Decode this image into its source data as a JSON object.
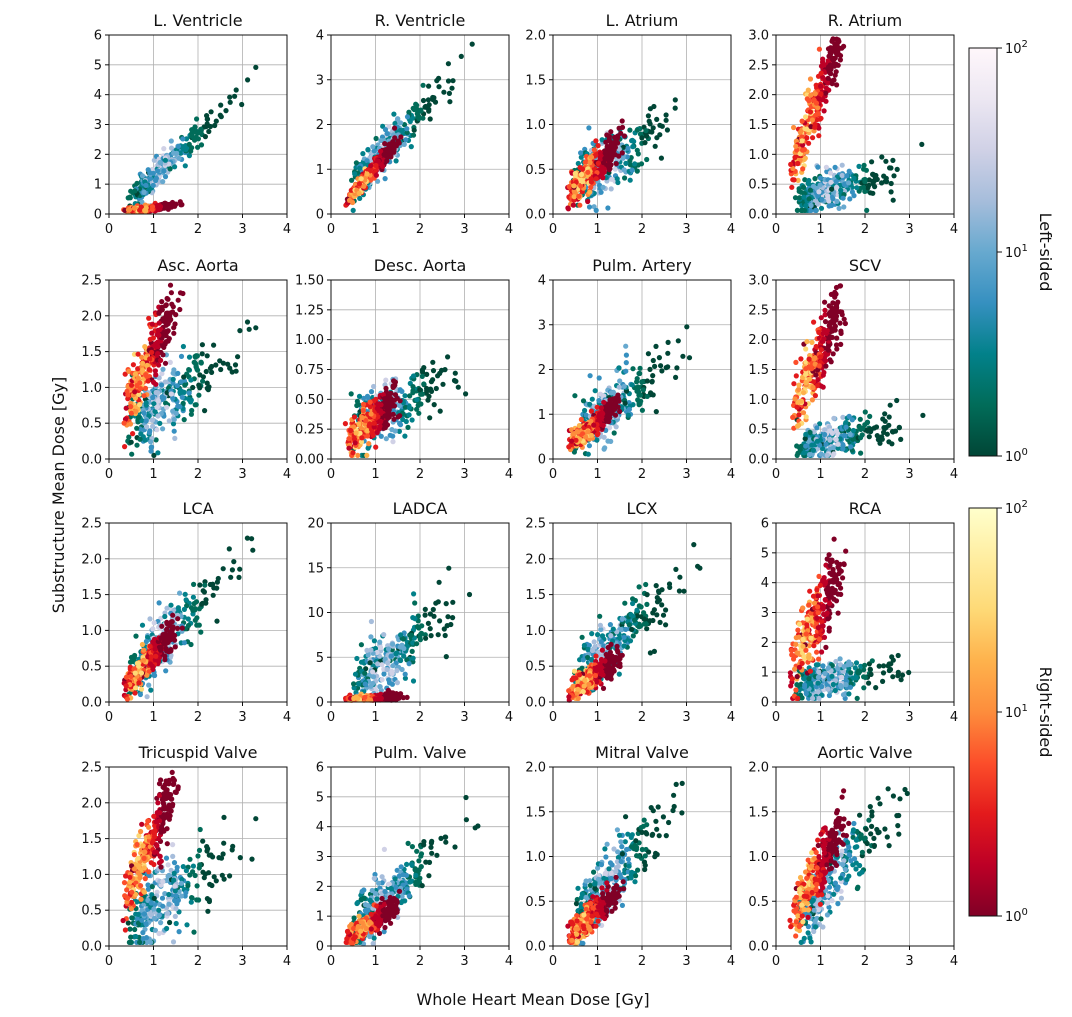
{
  "figure": {
    "xlabel": "Whole Heart Mean Dose [Gy]",
    "ylabel": "Substructure Mean Dose [Gy]"
  },
  "colorbars": [
    {
      "label": "Left-sided",
      "colormap": "PuBuGn_r",
      "scale": "log",
      "range": [
        1,
        100
      ],
      "ticks": [
        {
          "base": "10",
          "exp": "2"
        },
        {
          "base": "10",
          "exp": "1"
        },
        {
          "base": "10",
          "exp": "0"
        }
      ],
      "colors": [
        "#014636",
        "#016c59",
        "#02818a",
        "#3690c0",
        "#67a9cf",
        "#a6bddb",
        "#d0d1e6",
        "#ece7f2",
        "#fff7fb"
      ]
    },
    {
      "label": "Right-sided",
      "colormap": "YlOrRd_r",
      "scale": "log",
      "range": [
        1,
        100
      ],
      "ticks": [
        {
          "base": "10",
          "exp": "2"
        },
        {
          "base": "10",
          "exp": "1"
        },
        {
          "base": "10",
          "exp": "0"
        }
      ],
      "colors": [
        "#800026",
        "#bd0026",
        "#e31a1c",
        "#fc4e2a",
        "#fd8d3c",
        "#feb24c",
        "#fed976",
        "#ffeda0",
        "#ffffcc"
      ]
    }
  ],
  "chart_data": [
    {
      "type": "heatmap",
      "title": "L. Ventricle",
      "xlim": [
        0,
        4
      ],
      "ylim": [
        0,
        6
      ],
      "xticks": [
        "0",
        "1",
        "2",
        "3",
        "4"
      ],
      "yticks": [
        "0",
        "1",
        "2",
        "3",
        "4",
        "5",
        "6"
      ],
      "grid": true,
      "series": [
        {
          "name": "Left-sided",
          "slope": 1.45,
          "intercept": -0.2,
          "spread": 0.22
        },
        {
          "name": "Right-sided",
          "slope": 0.18,
          "intercept": 0.03,
          "spread": 0.05
        }
      ]
    },
    {
      "type": "heatmap",
      "title": "R. Ventricle",
      "xlim": [
        0,
        4
      ],
      "ylim": [
        0,
        4
      ],
      "xticks": [
        "0",
        "1",
        "2",
        "3",
        "4"
      ],
      "yticks": [
        "0",
        "1",
        "2",
        "3",
        "4"
      ],
      "grid": true,
      "series": [
        {
          "name": "Left-sided",
          "slope": 1.1,
          "intercept": 0.1,
          "spread": 0.25
        },
        {
          "name": "Right-sided",
          "slope": 1.15,
          "intercept": -0.1,
          "spread": 0.1
        }
      ]
    },
    {
      "type": "heatmap",
      "title": "L. Atrium",
      "xlim": [
        0,
        4
      ],
      "ylim": [
        0,
        2
      ],
      "xticks": [
        "0",
        "1",
        "2",
        "3",
        "4"
      ],
      "yticks": [
        "0.0",
        "0.5",
        "1.0",
        "1.5",
        "2.0"
      ],
      "grid": true,
      "series": [
        {
          "name": "Left-sided",
          "slope": 0.3,
          "intercept": 0.2,
          "spread": 0.16
        },
        {
          "name": "Right-sided",
          "slope": 0.5,
          "intercept": 0.05,
          "spread": 0.1
        }
      ]
    },
    {
      "type": "heatmap",
      "title": "R. Atrium",
      "xlim": [
        0,
        4
      ],
      "ylim": [
        0,
        3
      ],
      "xticks": [
        "0",
        "1",
        "2",
        "3",
        "4"
      ],
      "yticks": [
        "0.0",
        "0.5",
        "1.0",
        "1.5",
        "2.0",
        "2.5",
        "3.0"
      ],
      "grid": true,
      "series": [
        {
          "name": "Left-sided",
          "slope": 0.2,
          "intercept": 0.15,
          "spread": 0.16
        },
        {
          "name": "Right-sided",
          "slope": 2.0,
          "intercept": 0.05,
          "spread": 0.25
        }
      ]
    },
    {
      "type": "heatmap",
      "title": "Asc. Aorta",
      "xlim": [
        0,
        4
      ],
      "ylim": [
        0,
        2.5
      ],
      "xticks": [
        "0",
        "1",
        "2",
        "3",
        "4"
      ],
      "yticks": [
        "0.0",
        "0.5",
        "1.0",
        "1.5",
        "2.0",
        "2.5"
      ],
      "grid": true,
      "series": [
        {
          "name": "Left-sided",
          "slope": 0.4,
          "intercept": 0.3,
          "spread": 0.25
        },
        {
          "name": "Right-sided",
          "slope": 1.3,
          "intercept": 0.2,
          "spread": 0.22
        }
      ]
    },
    {
      "type": "heatmap",
      "title": "Desc. Aorta",
      "xlim": [
        0,
        4
      ],
      "ylim": [
        0,
        1.5
      ],
      "xticks": [
        "0",
        "1",
        "2",
        "3",
        "4"
      ],
      "yticks": [
        "0.00",
        "0.25",
        "0.50",
        "0.75",
        "1.00",
        "1.25",
        "1.50"
      ],
      "grid": true,
      "series": [
        {
          "name": "Left-sided",
          "slope": 0.2,
          "intercept": 0.15,
          "spread": 0.12
        },
        {
          "name": "Right-sided",
          "slope": 0.3,
          "intercept": 0.05,
          "spread": 0.08
        }
      ]
    },
    {
      "type": "heatmap",
      "title": "Pulm. Artery",
      "xlim": [
        0,
        4
      ],
      "ylim": [
        0,
        4
      ],
      "xticks": [
        "0",
        "1",
        "2",
        "3",
        "4"
      ],
      "yticks": [
        "0",
        "1",
        "2",
        "3",
        "4"
      ],
      "grid": true,
      "series": [
        {
          "name": "Left-sided",
          "slope": 0.8,
          "intercept": 0.1,
          "spread": 0.35
        },
        {
          "name": "Right-sided",
          "slope": 0.85,
          "intercept": 0.0,
          "spread": 0.12
        }
      ]
    },
    {
      "type": "heatmap",
      "title": "SCV",
      "xlim": [
        0,
        4
      ],
      "ylim": [
        0,
        3
      ],
      "xticks": [
        "0",
        "1",
        "2",
        "3",
        "4"
      ],
      "yticks": [
        "0.0",
        "0.5",
        "1.0",
        "1.5",
        "2.0",
        "2.5",
        "3.0"
      ],
      "grid": true,
      "series": [
        {
          "name": "Left-sided",
          "slope": 0.18,
          "intercept": 0.1,
          "spread": 0.15
        },
        {
          "name": "Right-sided",
          "slope": 1.6,
          "intercept": 0.2,
          "spread": 0.28
        }
      ]
    },
    {
      "type": "heatmap",
      "title": "LCA",
      "xlim": [
        0,
        4
      ],
      "ylim": [
        0,
        2.5
      ],
      "xticks": [
        "0",
        "1",
        "2",
        "3",
        "4"
      ],
      "yticks": [
        "0.0",
        "0.5",
        "1.0",
        "1.5",
        "2.0",
        "2.5"
      ],
      "grid": true,
      "series": [
        {
          "name": "Left-sided",
          "slope": 0.65,
          "intercept": 0.05,
          "spread": 0.2
        },
        {
          "name": "Right-sided",
          "slope": 0.7,
          "intercept": -0.05,
          "spread": 0.1
        }
      ]
    },
    {
      "type": "heatmap",
      "title": "LADCA",
      "xlim": [
        0,
        4
      ],
      "ylim": [
        0,
        20
      ],
      "xticks": [
        "0",
        "1",
        "2",
        "3",
        "4"
      ],
      "yticks": [
        "0",
        "5",
        "10",
        "15",
        "20"
      ],
      "grid": true,
      "series": [
        {
          "name": "Left-sided",
          "slope": 4.0,
          "intercept": -0.5,
          "spread": 1.8
        },
        {
          "name": "Right-sided",
          "slope": 0.4,
          "intercept": 0.0,
          "spread": 0.25
        }
      ]
    },
    {
      "type": "heatmap",
      "title": "LCX",
      "xlim": [
        0,
        4
      ],
      "ylim": [
        0,
        2.5
      ],
      "xticks": [
        "0",
        "1",
        "2",
        "3",
        "4"
      ],
      "yticks": [
        "0.0",
        "0.5",
        "1.0",
        "1.5",
        "2.0",
        "2.5"
      ],
      "grid": true,
      "series": [
        {
          "name": "Left-sided",
          "slope": 0.55,
          "intercept": 0.05,
          "spread": 0.2
        },
        {
          "name": "Right-sided",
          "slope": 0.45,
          "intercept": -0.05,
          "spread": 0.1
        }
      ]
    },
    {
      "type": "heatmap",
      "title": "RCA",
      "xlim": [
        0,
        4
      ],
      "ylim": [
        0,
        6
      ],
      "xticks": [
        "0",
        "1",
        "2",
        "3",
        "4"
      ],
      "yticks": [
        "0",
        "1",
        "2",
        "3",
        "4",
        "5",
        "6"
      ],
      "grid": true,
      "series": [
        {
          "name": "Left-sided",
          "slope": 0.25,
          "intercept": 0.4,
          "spread": 0.3
        },
        {
          "name": "Right-sided",
          "slope": 3.0,
          "intercept": 0.1,
          "spread": 0.6
        }
      ]
    },
    {
      "type": "heatmap",
      "title": "Tricuspid Valve",
      "xlim": [
        0,
        4
      ],
      "ylim": [
        0,
        2.5
      ],
      "xticks": [
        "0",
        "1",
        "2",
        "3",
        "4"
      ],
      "yticks": [
        "0.0",
        "0.5",
        "1.0",
        "1.5",
        "2.0",
        "2.5"
      ],
      "grid": true,
      "series": [
        {
          "name": "Left-sided",
          "slope": 0.45,
          "intercept": 0.1,
          "spread": 0.28
        },
        {
          "name": "Right-sided",
          "slope": 1.4,
          "intercept": 0.15,
          "spread": 0.2
        }
      ]
    },
    {
      "type": "heatmap",
      "title": "Pulm. Valve",
      "xlim": [
        0,
        4
      ],
      "ylim": [
        0,
        6
      ],
      "xticks": [
        "0",
        "1",
        "2",
        "3",
        "4"
      ],
      "yticks": [
        "0",
        "1",
        "2",
        "3",
        "4",
        "5",
        "6"
      ],
      "grid": true,
      "series": [
        {
          "name": "Left-sided",
          "slope": 1.3,
          "intercept": 0.0,
          "spread": 0.5
        },
        {
          "name": "Right-sided",
          "slope": 1.0,
          "intercept": -0.1,
          "spread": 0.2
        }
      ]
    },
    {
      "type": "heatmap",
      "title": "Mitral Valve",
      "xlim": [
        0,
        4
      ],
      "ylim": [
        0,
        2
      ],
      "xticks": [
        "0",
        "1",
        "2",
        "3",
        "4"
      ],
      "yticks": [
        "0.0",
        "0.5",
        "1.0",
        "1.5",
        "2.0"
      ],
      "grid": true,
      "series": [
        {
          "name": "Left-sided",
          "slope": 0.55,
          "intercept": 0.0,
          "spread": 0.18
        },
        {
          "name": "Right-sided",
          "slope": 0.45,
          "intercept": -0.05,
          "spread": 0.08
        }
      ]
    },
    {
      "type": "heatmap",
      "title": "Aortic Valve",
      "xlim": [
        0,
        4
      ],
      "ylim": [
        0,
        2
      ],
      "xticks": [
        "0",
        "1",
        "2",
        "3",
        "4"
      ],
      "yticks": [
        "0.0",
        "0.5",
        "1.0",
        "1.5",
        "2.0"
      ],
      "grid": true,
      "series": [
        {
          "name": "Left-sided",
          "slope": 0.55,
          "intercept": 0.05,
          "spread": 0.2
        },
        {
          "name": "Right-sided",
          "slope": 0.9,
          "intercept": 0.0,
          "spread": 0.15
        }
      ]
    }
  ]
}
